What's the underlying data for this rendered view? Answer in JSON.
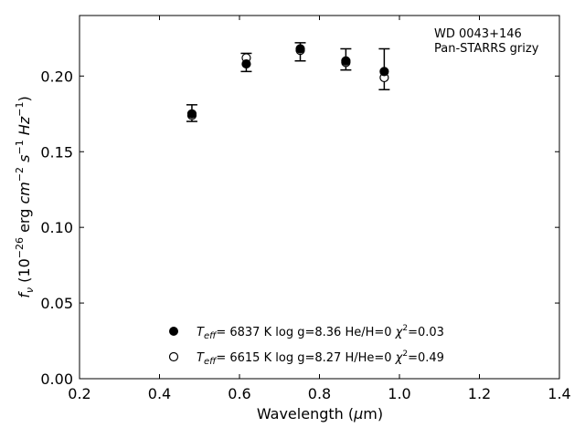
{
  "chart_data": {
    "type": "scatter",
    "title": "",
    "xlabel": "Wavelength (μm)",
    "ylabel": "f_ν (10^-26 erg cm^-2 s^-1 Hz^-1)",
    "xlim": [
      0.2,
      1.4
    ],
    "ylim": [
      0.0,
      0.24
    ],
    "xticks": [
      "0.2",
      "0.4",
      "0.6",
      "0.8",
      "1.0",
      "1.2",
      "1.4"
    ],
    "yticks": [
      "0.00",
      "0.05",
      "0.10",
      "0.15",
      "0.20"
    ],
    "annotation": [
      "WD 0043+146",
      "Pan-STARRS grizy"
    ],
    "observed": {
      "x": [
        0.481,
        0.617,
        0.752,
        0.866,
        0.962
      ],
      "y": [
        0.175,
        0.209,
        0.216,
        0.211,
        0.204
      ],
      "yerr_low": [
        0.17,
        0.203,
        0.21,
        0.204,
        0.191
      ],
      "yerr_high": [
        0.181,
        0.215,
        0.222,
        0.218,
        0.218
      ]
    },
    "series": [
      {
        "name": "T_eff= 6837 K log g=8.36 He/H=0 χ²=0.03",
        "marker": "filled-circle",
        "x": [
          0.481,
          0.617,
          0.752,
          0.866,
          0.962
        ],
        "y": [
          0.175,
          0.208,
          0.218,
          0.21,
          0.203
        ]
      },
      {
        "name": "T_eff= 6615 K log g=8.27 H/He=0 χ²=0.49",
        "marker": "open-circle",
        "x": [
          0.481,
          0.617,
          0.752,
          0.866,
          0.962
        ],
        "y": [
          0.174,
          0.212,
          0.217,
          0.209,
          0.199
        ]
      }
    ],
    "legend": {
      "placement": "lower-center",
      "entries": [
        {
          "teff_value": "6837 K",
          "logg": "log g=8.36",
          "comp": "He/H=0",
          "chi2": "=0.03"
        },
        {
          "teff_value": "6615 K",
          "logg": "log g=8.27",
          "comp": "H/He=0",
          "chi2": "=0.49"
        }
      ]
    },
    "grid": false
  }
}
